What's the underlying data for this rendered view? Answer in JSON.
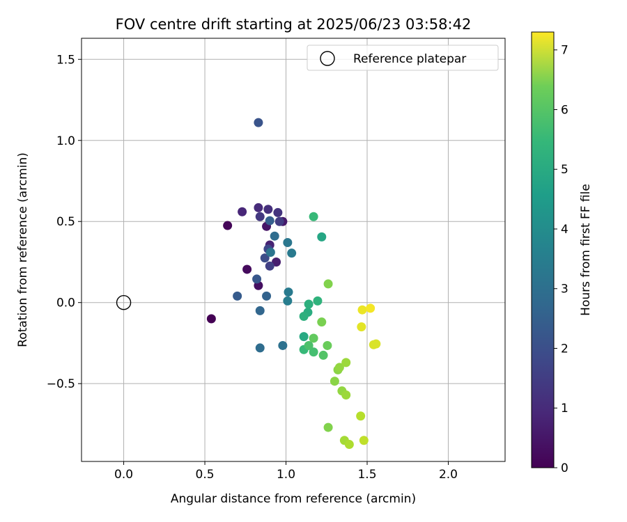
{
  "chart_data": {
    "type": "scatter",
    "title": "FOV centre drift starting at 2025/06/23 03:58:42",
    "xlabel": "Angular distance from reference (arcmin)",
    "ylabel": "Rotation from reference (arcmin)",
    "xlim": [
      -0.26,
      2.35
    ],
    "ylim": [
      -0.98,
      1.63
    ],
    "x_ticks": [
      0.0,
      0.5,
      1.0,
      1.5,
      2.0
    ],
    "x_tick_labels": [
      "0.0",
      "0.5",
      "1.0",
      "1.5",
      "2.0"
    ],
    "y_ticks": [
      1.5,
      1.0,
      0.5,
      0.0,
      -0.5
    ],
    "y_tick_labels": [
      "1.5",
      "1.0",
      "0.5",
      "0.0",
      "−0.5"
    ],
    "grid": true,
    "legend": {
      "position": "top-right",
      "entries": [
        {
          "label": "Reference platepar",
          "marker": "open-circle"
        }
      ]
    },
    "reference_point": {
      "x": 0.0,
      "y": 0.0
    },
    "colorbar": {
      "label": "Hours from first FF file",
      "colormap": "viridis",
      "min": 0,
      "max": 7.3,
      "ticks": [
        0,
        1,
        2,
        3,
        4,
        5,
        6,
        7
      ],
      "tick_labels": [
        "0",
        "1",
        "2",
        "3",
        "4",
        "5",
        "6",
        "7"
      ]
    },
    "points": [
      {
        "x": 0.54,
        "y": -0.1,
        "h": 0.0
      },
      {
        "x": 0.64,
        "y": 0.475,
        "h": 0.1
      },
      {
        "x": 0.76,
        "y": 0.205,
        "h": 0.2
      },
      {
        "x": 0.83,
        "y": 0.105,
        "h": 0.3
      },
      {
        "x": 0.88,
        "y": 0.47,
        "h": 0.4
      },
      {
        "x": 0.98,
        "y": 0.5,
        "h": 0.5
      },
      {
        "x": 0.94,
        "y": 0.25,
        "h": 0.6
      },
      {
        "x": 0.9,
        "y": 0.355,
        "h": 0.7
      },
      {
        "x": 0.73,
        "y": 0.56,
        "h": 0.8
      },
      {
        "x": 0.83,
        "y": 0.585,
        "h": 0.9
      },
      {
        "x": 0.89,
        "y": 0.575,
        "h": 1.0
      },
      {
        "x": 0.95,
        "y": 0.555,
        "h": 1.1
      },
      {
        "x": 0.84,
        "y": 0.53,
        "h": 1.2
      },
      {
        "x": 0.96,
        "y": 0.5,
        "h": 1.3
      },
      {
        "x": 0.9,
        "y": 0.225,
        "h": 1.4
      },
      {
        "x": 0.89,
        "y": 0.33,
        "h": 1.6
      },
      {
        "x": 0.87,
        "y": 0.275,
        "h": 1.7
      },
      {
        "x": 0.83,
        "y": 1.11,
        "h": 1.9
      },
      {
        "x": 0.82,
        "y": 0.145,
        "h": 2.0
      },
      {
        "x": 0.7,
        "y": 0.04,
        "h": 2.1
      },
      {
        "x": 0.9,
        "y": 0.505,
        "h": 2.2
      },
      {
        "x": 0.88,
        "y": 0.04,
        "h": 2.3
      },
      {
        "x": 0.84,
        "y": -0.05,
        "h": 2.4
      },
      {
        "x": 0.84,
        "y": -0.28,
        "h": 2.6
      },
      {
        "x": 0.93,
        "y": 0.41,
        "h": 2.6
      },
      {
        "x": 0.98,
        "y": -0.265,
        "h": 2.7
      },
      {
        "x": 0.905,
        "y": 0.31,
        "h": 2.8
      },
      {
        "x": 1.01,
        "y": 0.37,
        "h": 2.9
      },
      {
        "x": 1.035,
        "y": 0.305,
        "h": 3.0
      },
      {
        "x": 1.015,
        "y": 0.065,
        "h": 3.0
      },
      {
        "x": 1.01,
        "y": 0.01,
        "h": 3.1
      },
      {
        "x": 1.22,
        "y": 0.405,
        "h": 4.3
      },
      {
        "x": 1.11,
        "y": -0.21,
        "h": 4.4
      },
      {
        "x": 1.135,
        "y": -0.06,
        "h": 4.5
      },
      {
        "x": 1.14,
        "y": -0.01,
        "h": 4.6
      },
      {
        "x": 1.11,
        "y": -0.085,
        "h": 4.6
      },
      {
        "x": 1.195,
        "y": 0.01,
        "h": 4.7
      },
      {
        "x": 1.17,
        "y": 0.53,
        "h": 4.9
      },
      {
        "x": 1.11,
        "y": -0.29,
        "h": 4.9
      },
      {
        "x": 1.17,
        "y": -0.305,
        "h": 5.1
      },
      {
        "x": 1.14,
        "y": -0.265,
        "h": 5.2
      },
      {
        "x": 1.23,
        "y": -0.325,
        "h": 5.3
      },
      {
        "x": 1.17,
        "y": -0.22,
        "h": 5.5
      },
      {
        "x": 1.255,
        "y": -0.265,
        "h": 5.6
      },
      {
        "x": 1.22,
        "y": -0.12,
        "h": 5.8
      },
      {
        "x": 1.26,
        "y": 0.115,
        "h": 5.9
      },
      {
        "x": 1.26,
        "y": -0.77,
        "h": 5.9
      },
      {
        "x": 1.3,
        "y": -0.485,
        "h": 6.0
      },
      {
        "x": 1.32,
        "y": -0.415,
        "h": 6.0
      },
      {
        "x": 1.33,
        "y": -0.4,
        "h": 6.1
      },
      {
        "x": 1.345,
        "y": -0.545,
        "h": 6.1
      },
      {
        "x": 1.37,
        "y": -0.57,
        "h": 6.2
      },
      {
        "x": 1.37,
        "y": -0.37,
        "h": 6.2
      },
      {
        "x": 1.36,
        "y": -0.85,
        "h": 6.3
      },
      {
        "x": 1.39,
        "y": -0.875,
        "h": 6.4
      },
      {
        "x": 1.46,
        "y": -0.7,
        "h": 6.5
      },
      {
        "x": 1.48,
        "y": -0.85,
        "h": 6.6
      },
      {
        "x": 1.54,
        "y": -0.26,
        "h": 6.9
      },
      {
        "x": 1.555,
        "y": -0.255,
        "h": 6.9
      },
      {
        "x": 1.465,
        "y": -0.15,
        "h": 7.0
      },
      {
        "x": 1.47,
        "y": -0.045,
        "h": 7.1
      },
      {
        "x": 1.52,
        "y": -0.035,
        "h": 7.2
      }
    ]
  }
}
